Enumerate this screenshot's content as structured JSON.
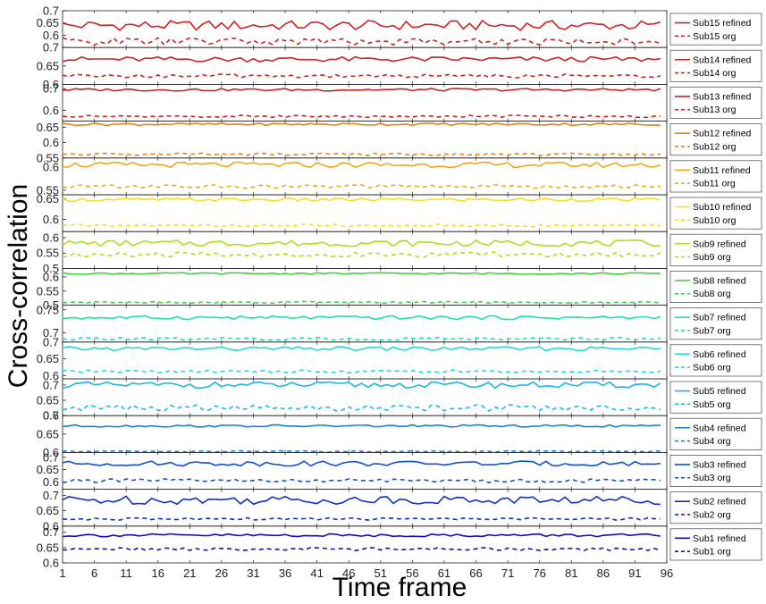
{
  "chart_data": {
    "type": "line",
    "ylabel": "Cross-correlation",
    "xlabel": "Time frame",
    "xlim": [
      1,
      96
    ],
    "x_ticks": [
      "1",
      "6",
      "11",
      "16",
      "21",
      "26",
      "31",
      "36",
      "41",
      "46",
      "51",
      "56",
      "61",
      "66",
      "71",
      "76",
      "81",
      "86",
      "91",
      "96"
    ],
    "legend_position": "right",
    "panels": [
      {
        "subject": "Sub15",
        "color": "#d42020",
        "ylim": [
          0.55,
          0.7
        ],
        "yticks": [
          "0.6",
          "0.65",
          "0.7"
        ],
        "legend_refined": "Sub15 refined",
        "legend_org": "Sub15 org",
        "refined_mean": 0.64,
        "refined_amp": 0.02,
        "org_mean": 0.575,
        "org_amp": 0.015
      },
      {
        "subject": "Sub14",
        "color": "#d42020",
        "ylim": [
          0.6,
          0.7
        ],
        "yticks": [
          "0.6",
          "0.65",
          "0.7"
        ],
        "legend_refined": "Sub14 refined",
        "legend_org": "Sub14 org",
        "refined_mean": 0.668,
        "refined_amp": 0.007,
        "org_mean": 0.623,
        "org_amp": 0.005
      },
      {
        "subject": "Sub13",
        "color": "#d42020",
        "ylim": [
          0.55,
          0.72
        ],
        "yticks": [
          "0.6",
          "0.7"
        ],
        "legend_refined": "Sub13 refined",
        "legend_org": "Sub13 org",
        "refined_mean": 0.695,
        "refined_amp": 0.006,
        "org_mean": 0.572,
        "org_amp": 0.005
      },
      {
        "subject": "Sub12",
        "color": "#e8801a",
        "ylim": [
          0.55,
          0.67
        ],
        "yticks": [
          "0.55",
          "0.6",
          "0.65"
        ],
        "legend_refined": "Sub12 refined",
        "legend_org": "Sub12 org",
        "refined_mean": 0.66,
        "refined_amp": 0.004,
        "org_mean": 0.562,
        "org_amp": 0.004
      },
      {
        "subject": "Sub11",
        "color": "#f0a818",
        "ylim": [
          0.54,
          0.62
        ],
        "yticks": [
          "0.55",
          "0.6"
        ],
        "legend_refined": "Sub11 refined",
        "legend_org": "Sub11 org",
        "refined_mean": 0.605,
        "refined_amp": 0.006,
        "org_mean": 0.558,
        "org_amp": 0.004
      },
      {
        "subject": "Sub10",
        "color": "#f0e020",
        "ylim": [
          0.57,
          0.66
        ],
        "yticks": [
          "0.6",
          "0.65"
        ],
        "legend_refined": "Sub10 refined",
        "legend_org": "Sub10 org",
        "refined_mean": 0.648,
        "refined_amp": 0.004,
        "org_mean": 0.585,
        "org_amp": 0.003
      },
      {
        "subject": "Sub9",
        "color": "#a8e020",
        "ylim": [
          0.5,
          0.62
        ],
        "yticks": [
          "0.5",
          "0.55",
          "0.6"
        ],
        "legend_refined": "Sub9 refined",
        "legend_org": "Sub9 org",
        "refined_mean": 0.582,
        "refined_amp": 0.01,
        "org_mean": 0.545,
        "org_amp": 0.008
      },
      {
        "subject": "Sub8",
        "color": "#40d040",
        "ylim": [
          0.5,
          0.63
        ],
        "yticks": [
          "0.5",
          "0.55",
          "0.6"
        ],
        "legend_refined": "Sub8 refined",
        "legend_org": "Sub8 org",
        "refined_mean": 0.612,
        "refined_amp": 0.003,
        "org_mean": 0.51,
        "org_amp": 0.003
      },
      {
        "subject": "Sub7",
        "color": "#20e0b0",
        "ylim": [
          0.68,
          0.76
        ],
        "yticks": [
          "0.7",
          "0.75"
        ],
        "legend_refined": "Sub7 refined",
        "legend_org": "Sub7 org",
        "refined_mean": 0.733,
        "refined_amp": 0.004,
        "org_mean": 0.687,
        "org_amp": 0.003
      },
      {
        "subject": "Sub6",
        "color": "#20d8e0",
        "ylim": [
          0.59,
          0.7
        ],
        "yticks": [
          "0.6",
          "0.65",
          "0.7"
        ],
        "legend_refined": "Sub6 refined",
        "legend_org": "Sub6 org",
        "refined_mean": 0.68,
        "refined_amp": 0.006,
        "org_mean": 0.612,
        "org_amp": 0.004
      },
      {
        "subject": "Sub5",
        "color": "#18b8e8",
        "ylim": [
          0.6,
          0.72
        ],
        "yticks": [
          "0.6",
          "0.65",
          "0.7"
        ],
        "legend_refined": "Sub5 refined",
        "legend_org": "Sub5 org",
        "refined_mean": 0.7,
        "refined_amp": 0.01,
        "org_mean": 0.625,
        "org_amp": 0.01
      },
      {
        "subject": "Sub4",
        "color": "#1880e0",
        "ylim": [
          0.6,
          0.7
        ],
        "yticks": [
          "0.6",
          "0.65",
          "0.7"
        ],
        "legend_refined": "Sub4 refined",
        "legend_org": "Sub4 org",
        "refined_mean": 0.672,
        "refined_amp": 0.003,
        "org_mean": 0.603,
        "org_amp": 0.002
      },
      {
        "subject": "Sub3",
        "color": "#1050d8",
        "ylim": [
          0.57,
          0.72
        ],
        "yticks": [
          "0.6",
          "0.65",
          "0.7"
        ],
        "legend_refined": "Sub3 refined",
        "legend_org": "Sub3 org",
        "refined_mean": 0.675,
        "refined_amp": 0.01,
        "org_mean": 0.605,
        "org_amp": 0.008
      },
      {
        "subject": "Sub2",
        "color": "#1030c8",
        "ylim": [
          0.6,
          0.72
        ],
        "yticks": [
          "0.6",
          "0.65",
          "0.7"
        ],
        "legend_refined": "Sub2 refined",
        "legend_org": "Sub2 org",
        "refined_mean": 0.685,
        "refined_amp": 0.014,
        "org_mean": 0.623,
        "org_amp": 0.004
      },
      {
        "subject": "Sub1",
        "color": "#1010b0",
        "ylim": [
          0.6,
          0.72
        ],
        "yticks": [
          "0.6",
          "0.65",
          "0.7"
        ],
        "legend_refined": "Sub1 refined",
        "legend_org": "Sub1 org",
        "refined_mean": 0.69,
        "refined_amp": 0.005,
        "org_mean": 0.645,
        "org_amp": 0.005
      }
    ]
  }
}
